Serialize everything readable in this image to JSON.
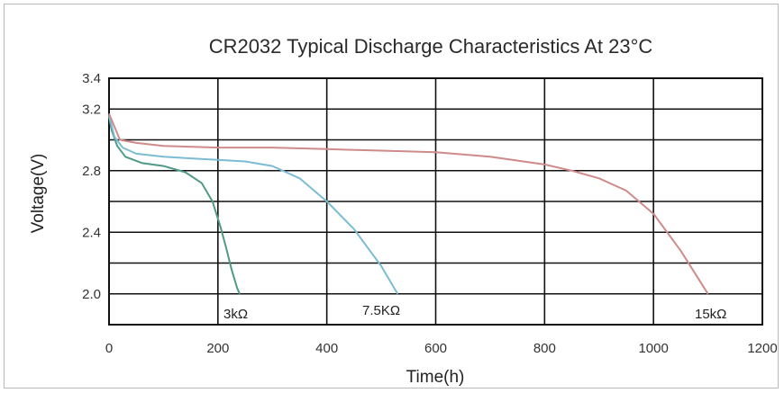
{
  "chart_data": {
    "type": "line",
    "title": "CR2032 Typical Discharge Characteristics At 23°C",
    "xlabel": "Time(h)",
    "ylabel": "Voltage(V)",
    "xlim": [
      0,
      1200
    ],
    "ylim": [
      1.8,
      3.4
    ],
    "x_ticks": [
      "0",
      "200",
      "400",
      "600",
      "800",
      "1000",
      "1200"
    ],
    "y_ticks": [
      "2.0",
      "2.4",
      "2.8",
      "3.2",
      "3.4"
    ],
    "grid": true,
    "series": [
      {
        "name": "3kΩ",
        "color": "#4f9a86",
        "x": [
          0,
          5,
          15,
          30,
          60,
          100,
          140,
          170,
          190,
          205,
          215,
          225,
          235,
          240
        ],
        "y": [
          3.15,
          3.06,
          2.96,
          2.89,
          2.85,
          2.83,
          2.79,
          2.72,
          2.6,
          2.43,
          2.3,
          2.16,
          2.04,
          2.0
        ]
      },
      {
        "name": "7.5KΩ",
        "color": "#7cbcd3",
        "x": [
          0,
          10,
          25,
          50,
          100,
          150,
          200,
          250,
          300,
          350,
          400,
          450,
          500,
          530
        ],
        "y": [
          3.16,
          3.02,
          2.95,
          2.91,
          2.89,
          2.88,
          2.87,
          2.86,
          2.83,
          2.75,
          2.6,
          2.42,
          2.18,
          2.0
        ]
      },
      {
        "name": "15kΩ",
        "color": "#cf8a8a",
        "x": [
          0,
          20,
          50,
          100,
          200,
          300,
          400,
          500,
          600,
          700,
          800,
          850,
          900,
          950,
          1000,
          1050,
          1100
        ],
        "y": [
          3.17,
          3.0,
          2.98,
          2.96,
          2.95,
          2.95,
          2.94,
          2.93,
          2.92,
          2.89,
          2.84,
          2.8,
          2.75,
          2.67,
          2.52,
          2.28,
          2.0
        ]
      }
    ]
  }
}
